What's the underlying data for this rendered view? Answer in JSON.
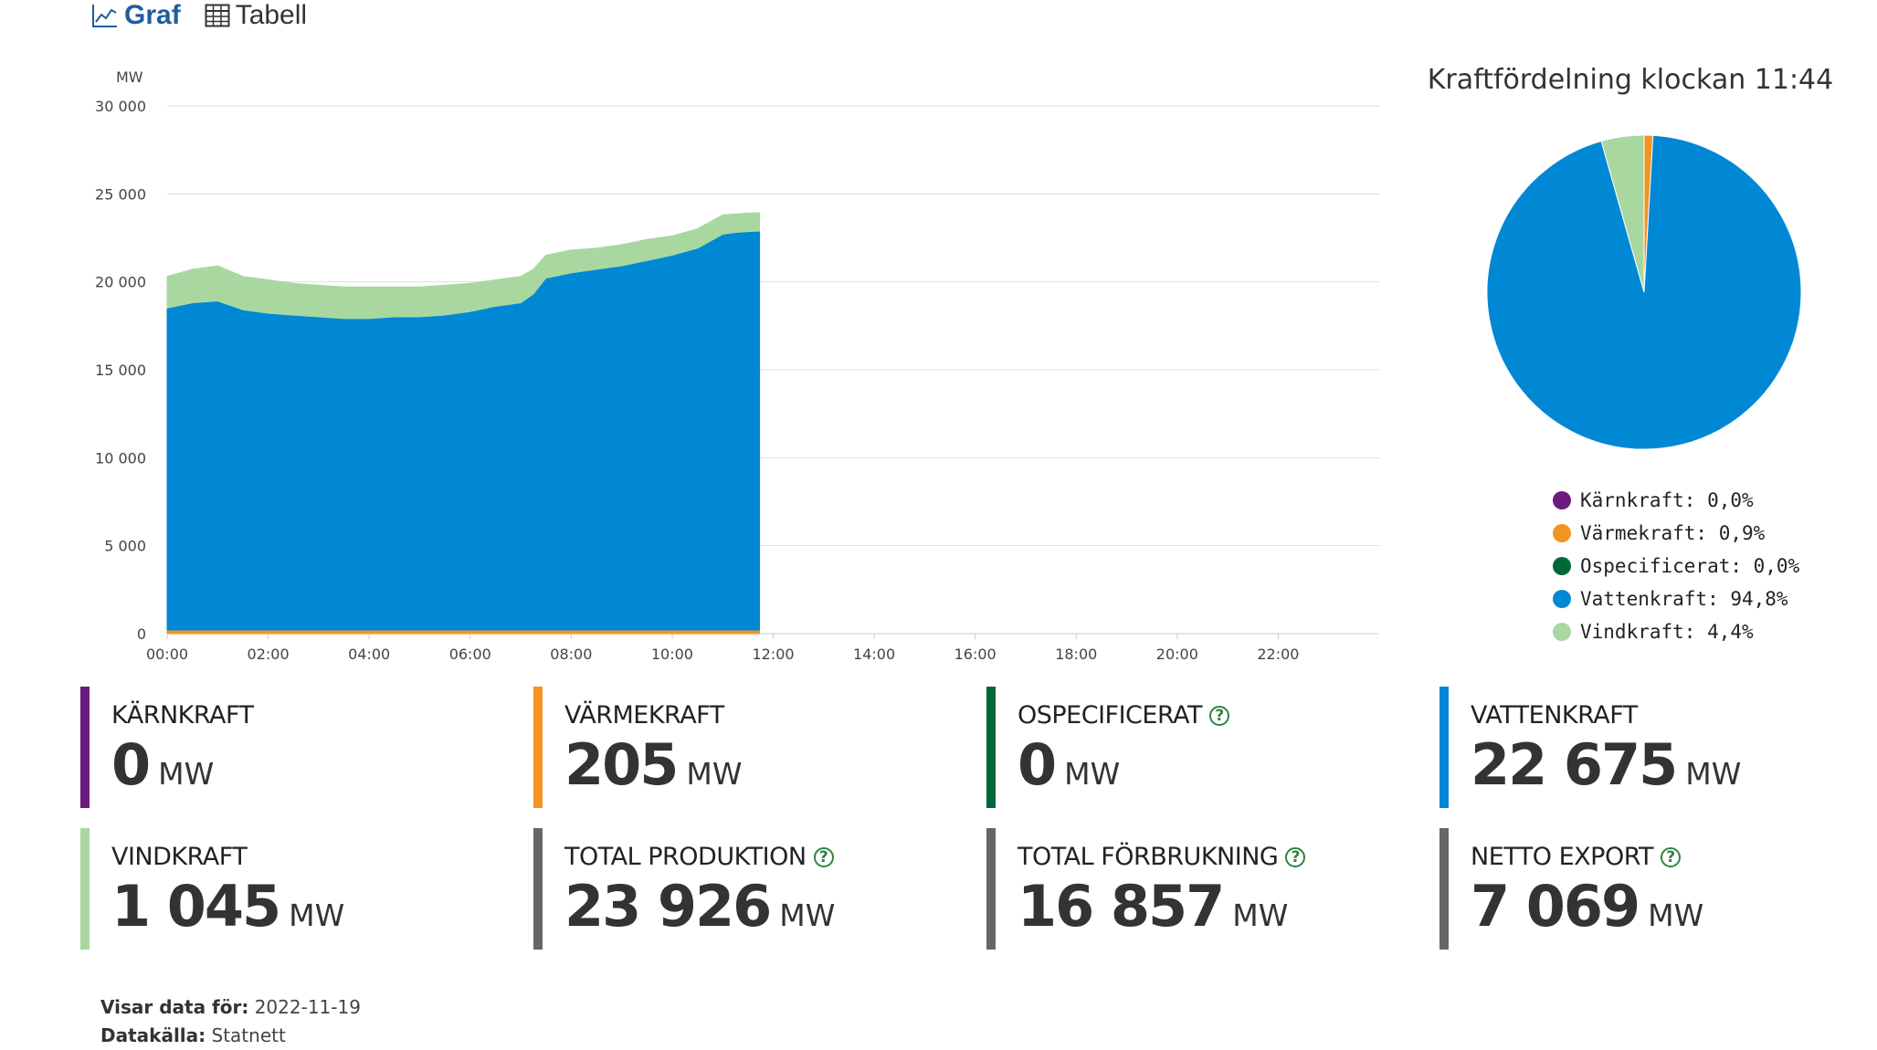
{
  "tabs": [
    {
      "label": "Graf",
      "active": true,
      "icon": "line-chart-icon"
    },
    {
      "label": "Tabell",
      "active": false,
      "icon": "table-icon"
    }
  ],
  "chart_data": [
    {
      "type": "area",
      "stacked": true,
      "ylabel": "MW",
      "ylim": [
        0,
        30000
      ],
      "yticks": [
        "0",
        "5 000",
        "10 000",
        "15 000",
        "20 000",
        "25 000",
        "30 000"
      ],
      "ytick_values": [
        0,
        5000,
        10000,
        15000,
        20000,
        25000,
        30000
      ],
      "xlim": [
        0,
        24
      ],
      "xticks": [
        "00:00",
        "02:00",
        "04:00",
        "06:00",
        "08:00",
        "10:00",
        "12:00",
        "14:00",
        "16:00",
        "18:00",
        "20:00",
        "22:00"
      ],
      "grid": true,
      "x": [
        0,
        0.5,
        1,
        1.5,
        2,
        2.5,
        3,
        3.5,
        4,
        4.5,
        5,
        5.5,
        6,
        6.5,
        7,
        7.25,
        7.5,
        8,
        8.5,
        9,
        9.5,
        10,
        10.5,
        11,
        11.25,
        11.5,
        11.73
      ],
      "series": [
        {
          "name": "Kärnkraft",
          "color": "#6a1b7d",
          "values": [
            0,
            0,
            0,
            0,
            0,
            0,
            0,
            0,
            0,
            0,
            0,
            0,
            0,
            0,
            0,
            0,
            0,
            0,
            0,
            0,
            0,
            0,
            0,
            0,
            0,
            0,
            0
          ]
        },
        {
          "name": "Värmekraft",
          "color": "#f39323",
          "values": [
            210,
            210,
            210,
            210,
            210,
            210,
            210,
            210,
            210,
            210,
            210,
            210,
            210,
            210,
            210,
            210,
            210,
            210,
            210,
            210,
            210,
            210,
            210,
            205,
            205,
            205,
            205
          ]
        },
        {
          "name": "Ospecificerat",
          "color": "#006837",
          "values": [
            0,
            0,
            0,
            0,
            0,
            0,
            0,
            0,
            0,
            0,
            0,
            0,
            0,
            0,
            0,
            0,
            0,
            0,
            0,
            0,
            0,
            0,
            0,
            0,
            0,
            0,
            0
          ]
        },
        {
          "name": "Vattenkraft",
          "color": "#0088d4",
          "values": [
            18300,
            18600,
            18700,
            18200,
            18000,
            17900,
            17800,
            17700,
            17700,
            17800,
            17800,
            17900,
            18100,
            18400,
            18600,
            19100,
            20000,
            20300,
            20500,
            20700,
            21000,
            21300,
            21700,
            22500,
            22600,
            22650,
            22675
          ]
        },
        {
          "name": "Vindkraft",
          "color": "#a8d8a0",
          "values": [
            1800,
            1900,
            2000,
            1900,
            1900,
            1800,
            1800,
            1800,
            1800,
            1700,
            1700,
            1700,
            1600,
            1500,
            1500,
            1400,
            1300,
            1300,
            1200,
            1200,
            1200,
            1100,
            1100,
            1100,
            1050,
            1050,
            1045
          ]
        }
      ]
    },
    {
      "type": "pie",
      "title": "Kraftfördelning klockan 11:44",
      "slices": [
        {
          "name": "Kärnkraft",
          "value": 0.0,
          "label": "Kärnkraft: 0,0%",
          "color": "#6a1b7d"
        },
        {
          "name": "Värmekraft",
          "value": 0.9,
          "label": "Värmekraft: 0,9%",
          "color": "#f39323"
        },
        {
          "name": "Ospecificerat",
          "value": 0.0,
          "label": "Ospecificerat: 0,0%",
          "color": "#006837"
        },
        {
          "name": "Vattenkraft",
          "value": 94.8,
          "label": "Vattenkraft: 94,8%",
          "color": "#0088d4"
        },
        {
          "name": "Vindkraft",
          "value": 4.4,
          "label": "Vindkraft: 4,4%",
          "color": "#a8d8a0"
        }
      ],
      "legend_position": "bottom"
    }
  ],
  "cards": [
    {
      "label": "KÄRNKRAFT",
      "value": "0",
      "unit": "MW",
      "color": "#6a1b7d",
      "help": false
    },
    {
      "label": "VÄRMEKRAFT",
      "value": "205",
      "unit": "MW",
      "color": "#f39323",
      "help": false
    },
    {
      "label": "OSPECIFICERAT",
      "value": "0",
      "unit": "MW",
      "color": "#006837",
      "help": true
    },
    {
      "label": "VATTENKRAFT",
      "value": "22 675",
      "unit": "MW",
      "color": "#0088d4",
      "help": false
    },
    {
      "label": "VINDKRAFT",
      "value": "1 045",
      "unit": "MW",
      "color": "#a8d8a0",
      "help": false
    },
    {
      "label": "TOTAL PRODUKTION",
      "value": "23 926",
      "unit": "MW",
      "color": "#666666",
      "help": true
    },
    {
      "label": "TOTAL FÖRBRUKNING",
      "value": "16 857",
      "unit": "MW",
      "color": "#666666",
      "help": true
    },
    {
      "label": "NETTO EXPORT",
      "value": "7 069",
      "unit": "MW",
      "color": "#666666",
      "help": true
    }
  ],
  "help_symbol": "?",
  "footer": {
    "date_label": "Visar data för:",
    "date_value": "2022-11-19",
    "source_label": "Datakälla:",
    "source_value": "Statnett"
  }
}
